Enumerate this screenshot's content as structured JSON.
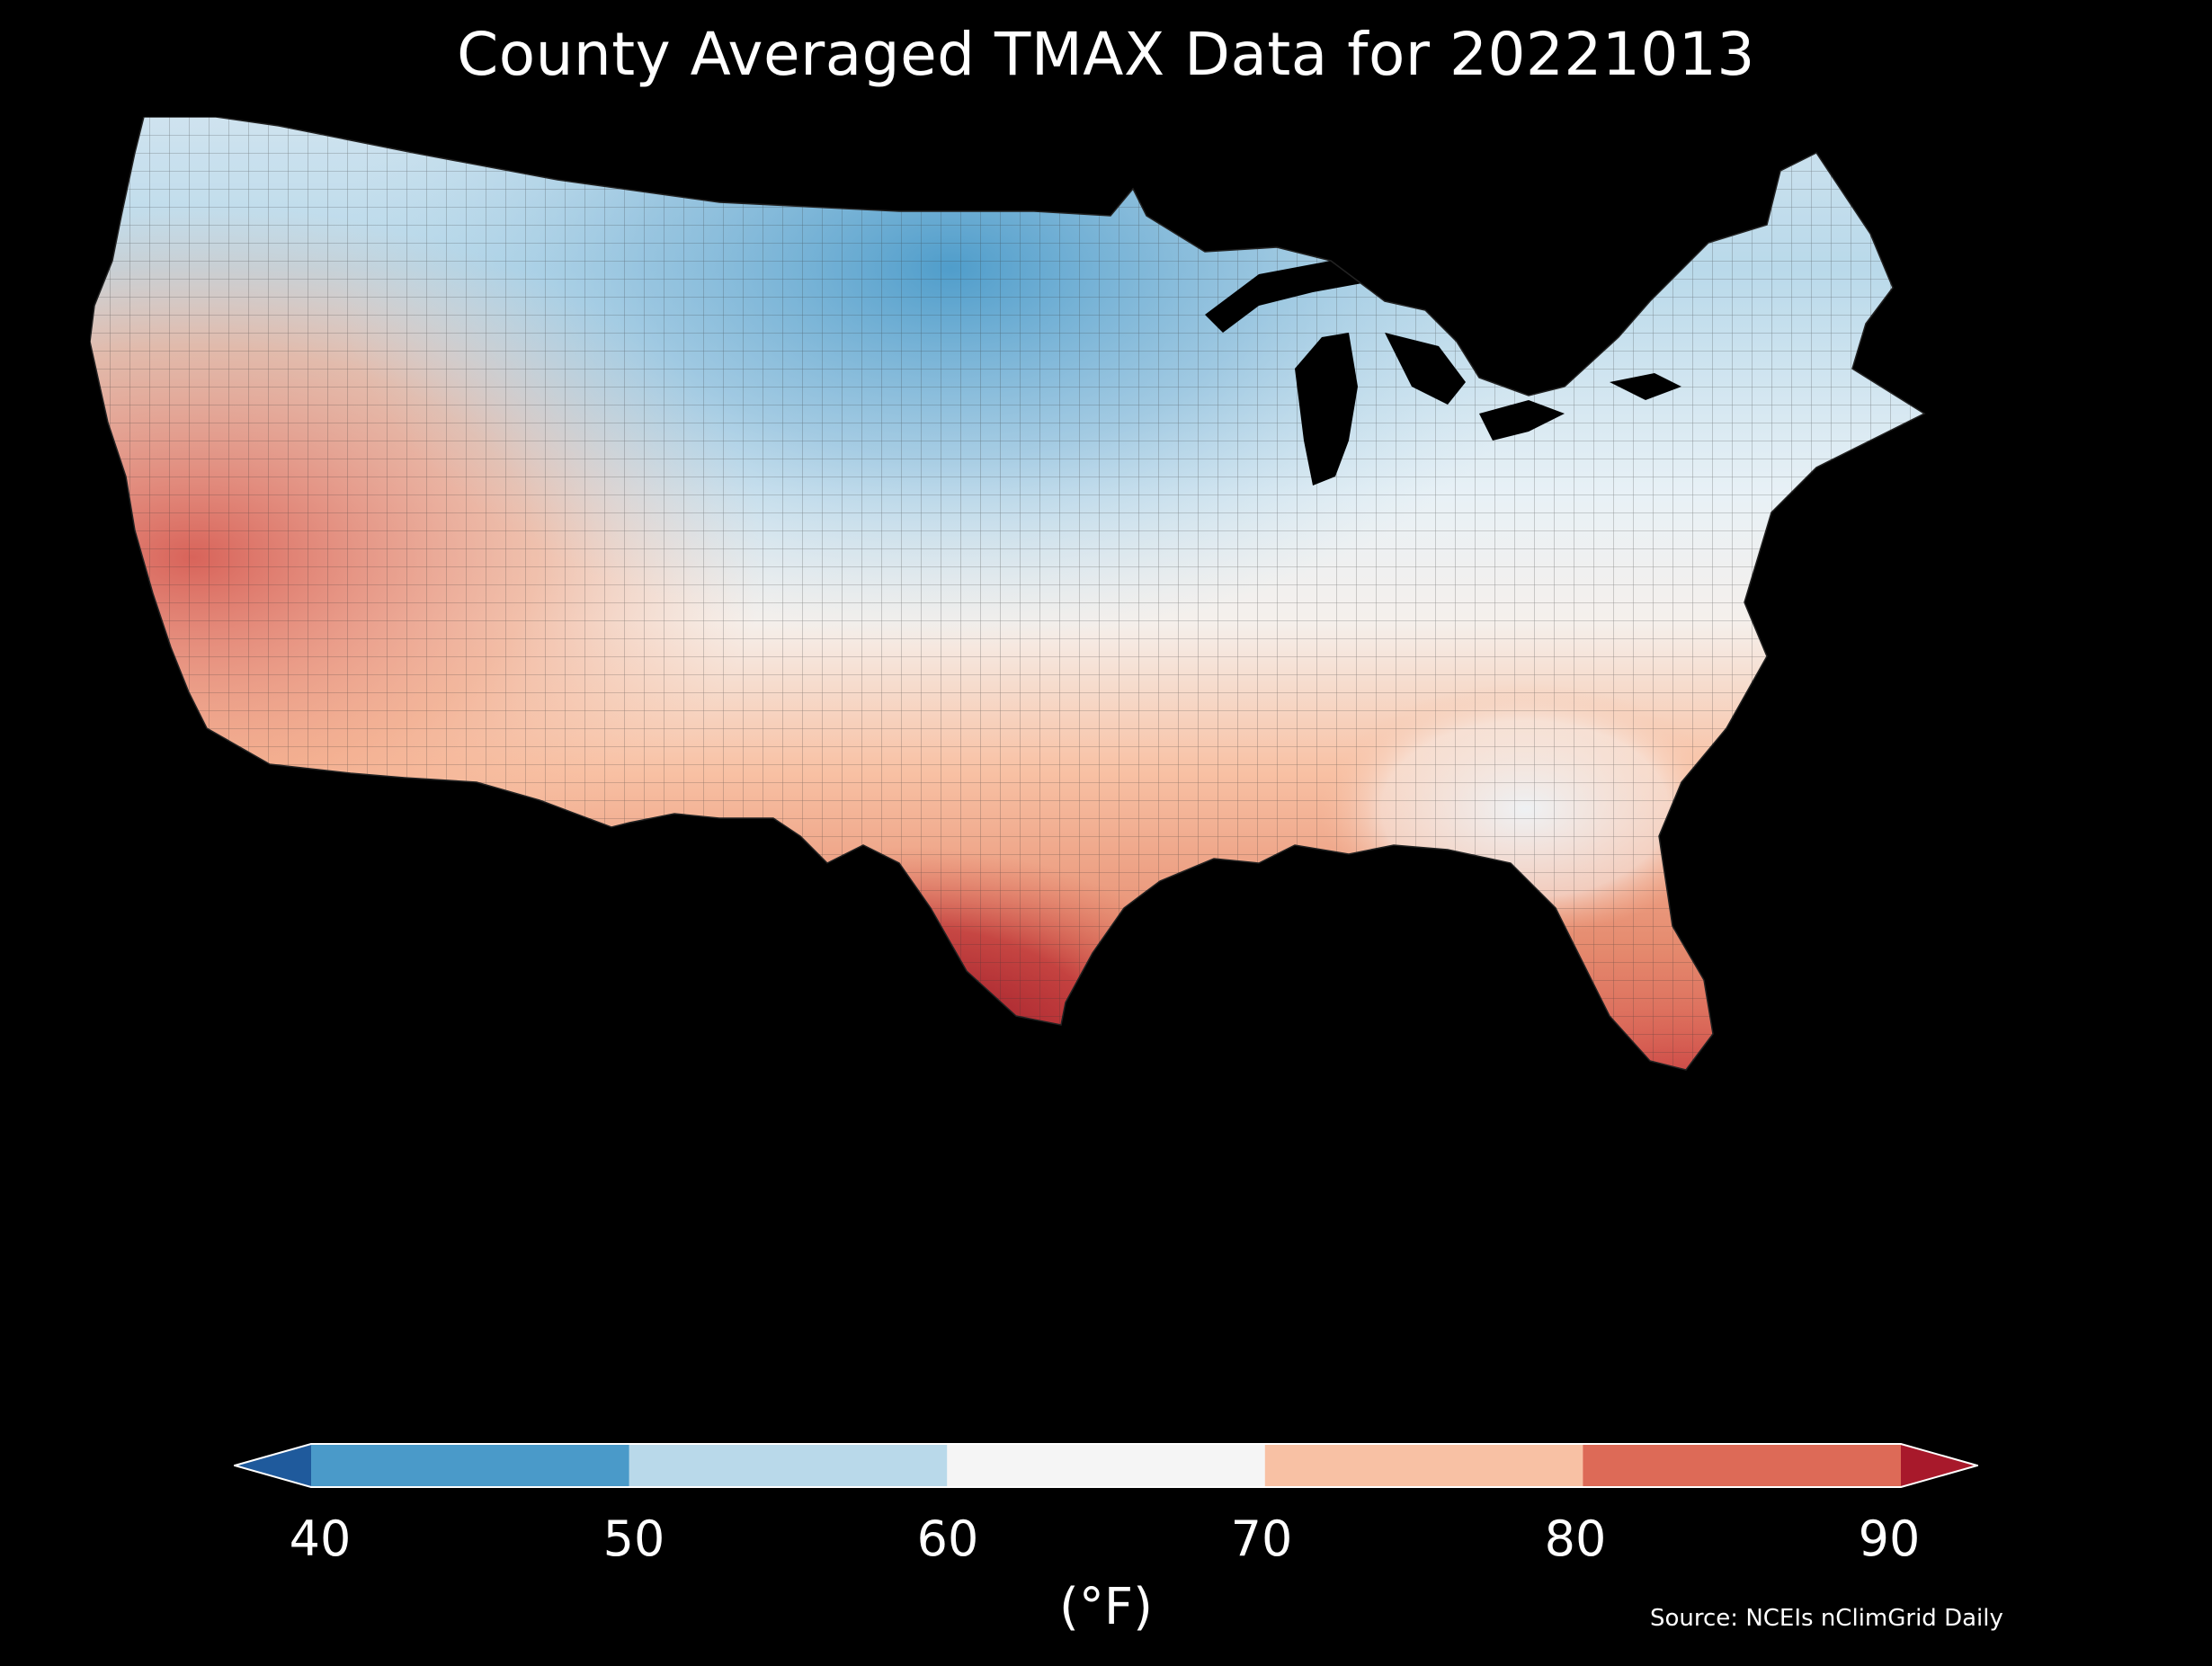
{
  "title": "County Averaged TMAX Data for 20221013",
  "colorbar": {
    "ticks": [
      "40",
      "50",
      "60",
      "70",
      "80",
      "90"
    ],
    "unit": "(°F)",
    "bins": [
      {
        "range": "<40",
        "color": "#1f5a9c"
      },
      {
        "range": "40-50",
        "color": "#4a9ac9"
      },
      {
        "range": "50-60",
        "color": "#b9d9ea"
      },
      {
        "range": "60-70",
        "color": "#f5f5f5"
      },
      {
        "range": "70-80",
        "color": "#f8c1a4"
      },
      {
        "range": "80-90",
        "color": "#dd6a57"
      },
      {
        "range": ">90",
        "color": "#a8192b"
      }
    ]
  },
  "source": "Source: NCEIs nClimGrid Daily",
  "colors": {
    "background": "#000000",
    "water": "#000000",
    "text": "#ffffff"
  }
}
